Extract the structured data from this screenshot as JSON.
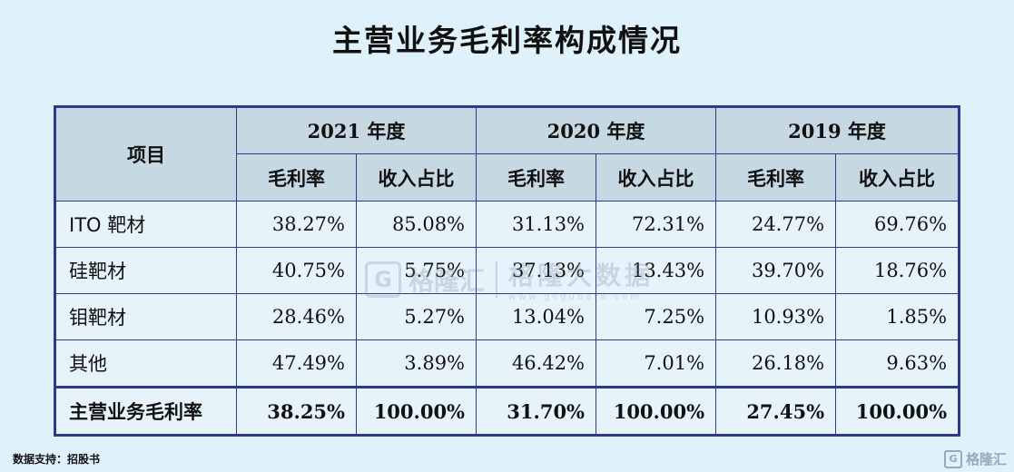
{
  "title": "主营业务毛利率构成情况",
  "table": {
    "item_header": "项目",
    "years": [
      "2021 年度",
      "2020 年度",
      "2019 年度"
    ],
    "sub_headers": [
      "毛利率",
      "收入占比",
      "毛利率",
      "收入占比",
      "毛利率",
      "收入占比"
    ],
    "rows": [
      {
        "label": "ITO 靶材",
        "values": [
          "38.27%",
          "85.08%",
          "31.13%",
          "72.31%",
          "24.77%",
          "69.76%"
        ]
      },
      {
        "label": "硅靶材",
        "values": [
          "40.75%",
          "5.75%",
          "37.13%",
          "13.43%",
          "39.70%",
          "18.76%"
        ]
      },
      {
        "label": "钼靶材",
        "values": [
          "28.46%",
          "5.27%",
          "13.04%",
          "7.25%",
          "10.93%",
          "1.85%"
        ]
      },
      {
        "label": "其他",
        "values": [
          "47.49%",
          "3.89%",
          "46.42%",
          "7.01%",
          "26.18%",
          "9.63%"
        ]
      }
    ],
    "total": {
      "label": "主营业务毛利率",
      "values": [
        "38.25%",
        "100.00%",
        "31.70%",
        "100.00%",
        "27.45%",
        "100.00%"
      ]
    }
  },
  "source": "数据支持：招股书",
  "watermark": {
    "logo_letter": "G",
    "name": "格隆汇",
    "right_text": "格隆大数据",
    "url": "www.gogudata.com"
  },
  "corner_logo": {
    "letter": "G",
    "name": "格隆汇"
  }
}
